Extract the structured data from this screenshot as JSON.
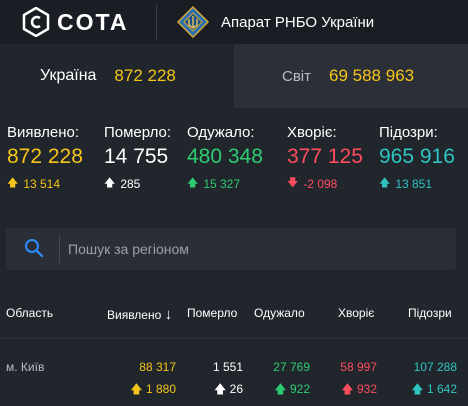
{
  "header": {
    "brand": "COTA",
    "org": "Апарат РНБО України"
  },
  "tabs": [
    {
      "label": "Україна",
      "value": "872 228"
    },
    {
      "label": "Світ",
      "value": "69 588 963"
    }
  ],
  "stats": [
    {
      "label": "Виявлено:",
      "value": "872 228",
      "delta": "13 514",
      "direction": "up",
      "color": "#f5c518",
      "arrow_color": "#f5c518"
    },
    {
      "label": "Померло:",
      "value": "14 755",
      "delta": "285",
      "direction": "up",
      "color": "#ffffff",
      "arrow_color": "#ffffff"
    },
    {
      "label": "Одужало:",
      "value": "480 348",
      "delta": "15 327",
      "direction": "up",
      "color": "#2ecc71",
      "arrow_color": "#2ecc71"
    },
    {
      "label": "Хворіє:",
      "value": "377 125",
      "delta": "-2 098",
      "direction": "down",
      "color": "#ff4d5e",
      "arrow_color": "#ff4d5e"
    },
    {
      "label": "Підозри:",
      "value": "965 916",
      "delta": "13 851",
      "direction": "up",
      "color": "#2ec4c0",
      "arrow_color": "#2ec4c0"
    }
  ],
  "search": {
    "placeholder": "Пошук за регіоном",
    "value": ""
  },
  "table": {
    "columns": [
      "Область",
      "Виявлено",
      "Померло",
      "Одужало",
      "Хворіє",
      "Підозри"
    ],
    "sort_indicator": "↓",
    "rows": [
      {
        "name": "м. Київ",
        "detected": "88 317",
        "detected_delta": "1 880",
        "died": "1 551",
        "died_delta": "26",
        "recovered": "27 769",
        "recovered_delta": "922",
        "sick": "58 997",
        "sick_delta": "932",
        "suspected": "107 288",
        "suspected_delta": "1 642"
      }
    ]
  },
  "colors": {
    "yellow": "#f5c518",
    "green": "#2ecc71",
    "red": "#ff4d5e",
    "teal": "#2ec4c0",
    "blue_icon": "#2f8cff"
  }
}
